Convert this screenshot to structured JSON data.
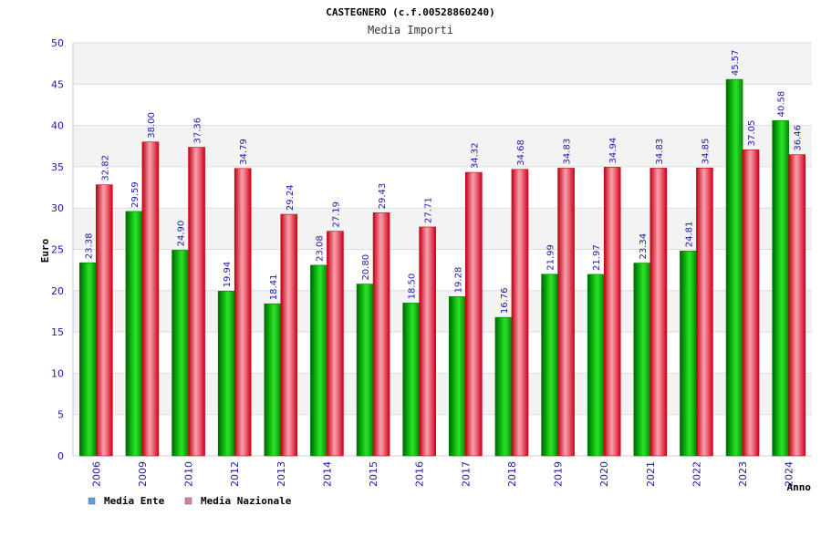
{
  "chart_data": {
    "type": "bar",
    "title": "CASTEGNERO (c.f.00528860240)",
    "subtitle": "Media Importi",
    "xlabel": "Anno",
    "ylabel": "Euro",
    "ylim": [
      0,
      50
    ],
    "yticks": [
      "0",
      "5",
      "10",
      "15",
      "20",
      "25",
      "30",
      "35",
      "40",
      "45",
      "50"
    ],
    "grid": true,
    "legend_position": "bottom-left",
    "categories": [
      "2006",
      "2009",
      "2010",
      "2012",
      "2013",
      "2014",
      "2015",
      "2016",
      "2017",
      "2018",
      "2019",
      "2020",
      "2021",
      "2022",
      "2023",
      "2024"
    ],
    "series": [
      {
        "name": "Media Ente",
        "color": "#00b400",
        "legend_color": "#5aa0e6",
        "values": [
          23.38,
          29.59,
          24.9,
          19.94,
          18.41,
          23.08,
          20.8,
          18.5,
          19.28,
          16.76,
          21.99,
          21.97,
          23.34,
          24.81,
          45.57,
          40.58
        ],
        "labels": [
          "23.38",
          "29.59",
          "24.90",
          "19.94",
          "18.41",
          "23.08",
          "20.80",
          "18.50",
          "19.28",
          "16.76",
          "21.99",
          "21.97",
          "23.34",
          "24.81",
          "45.57",
          "40.58"
        ]
      },
      {
        "name": "Media Nazionale",
        "color": "#e8142a",
        "legend_color": "#e07aa0",
        "values": [
          32.82,
          38.0,
          37.36,
          34.79,
          29.24,
          27.19,
          29.43,
          27.71,
          34.32,
          34.68,
          34.83,
          34.94,
          34.83,
          34.85,
          37.05,
          36.46
        ],
        "labels": [
          "32.82",
          "38.00",
          "37.36",
          "34.79",
          "29.24",
          "27.19",
          "29.43",
          "27.71",
          "34.32",
          "34.68",
          "34.83",
          "34.94",
          "34.83",
          "34.85",
          "37.05",
          "36.46"
        ]
      }
    ]
  }
}
